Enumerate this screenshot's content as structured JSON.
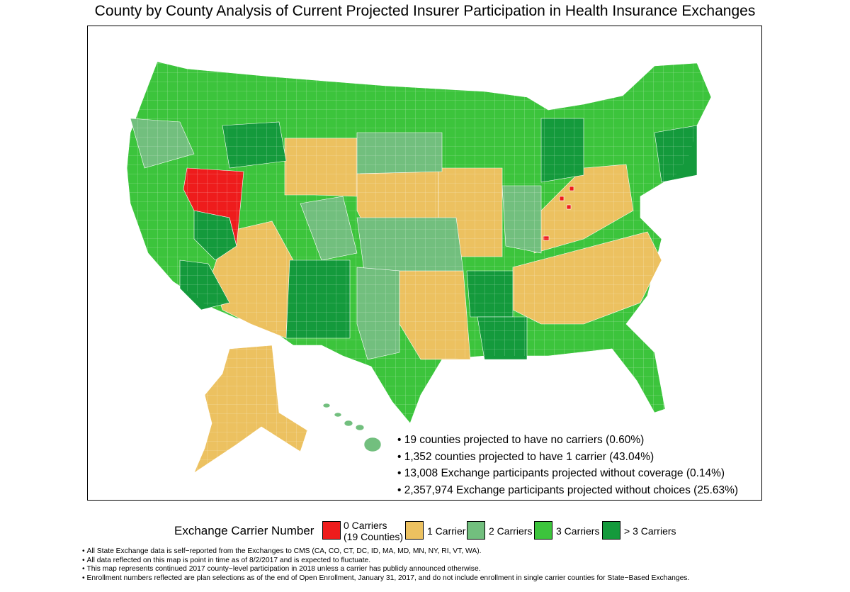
{
  "title": "County by County Analysis of Current Projected Insurer Participation in Health Insurance Exchanges",
  "colors": {
    "zero": "#ee1c1c",
    "one": "#ecc160",
    "two": "#72bf7e",
    "three": "#3cc43c",
    "more": "#149a3c",
    "county_line": "#ffffff"
  },
  "bullets": [
    "19 counties projected to have no carriers (0.60%)",
    "1,352 counties projected to have 1 carrier (43.04%)",
    "13,008 Exchange participants projected without coverage (0.14%)",
    "2,357,974 Exchange participants projected without choices (25.63%)"
  ],
  "legend": {
    "title": "Exchange Carrier Number",
    "items": [
      {
        "label": "0 Carriers",
        "sublabel": "(19 Counties)",
        "color": "#ee1c1c"
      },
      {
        "label": "1 Carrier",
        "color": "#ecc160"
      },
      {
        "label": "2 Carriers",
        "color": "#72bf7e"
      },
      {
        "label": "3 Carriers",
        "color": "#3cc43c"
      },
      {
        "label": "> 3 Carriers",
        "color": "#149a3c"
      }
    ]
  },
  "footnotes": [
    "All State Exchange data is self−reported from the Exchanges to CMS (CA, CO, CT, DC, ID, MA, MD, MN, NY, RI, VT, WA).",
    "All data reflected on this map is point in time as of 8/2/2017 and is expected to fluctuate.",
    "This map represents continued 2017 county−level participation in 2018 unless a carrier has publicly announced otherwise.",
    "Enrollment numbers reflected are plan selections as of the end of Open Enrollment, January 31, 2017, and do not include enrollment in single carrier counties for State−Based Exchanges."
  ]
}
